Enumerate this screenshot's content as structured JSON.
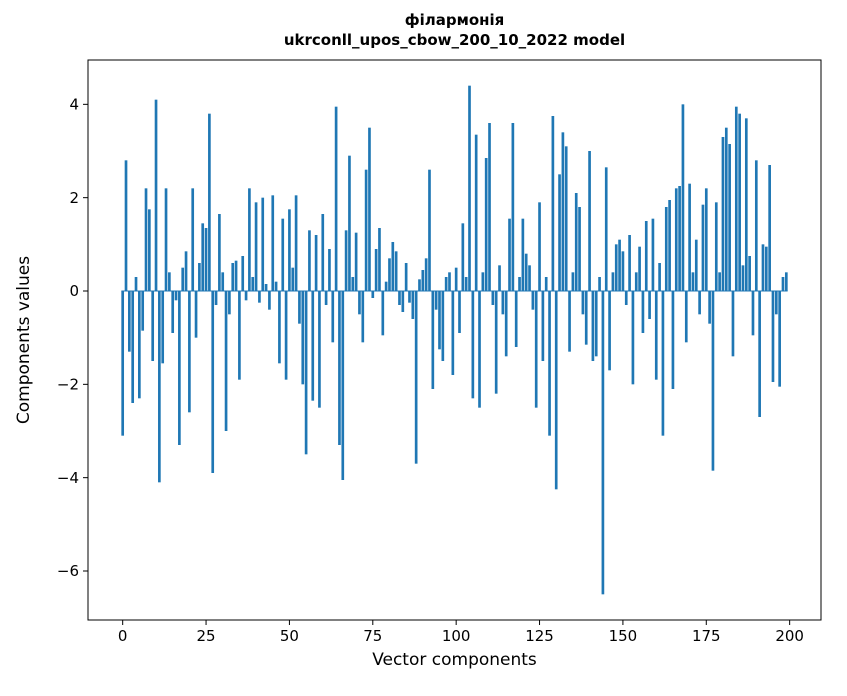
{
  "chart_data": {
    "type": "bar",
    "title_line1": "філармонія",
    "title_line2": "ukrconll_upos_cbow_200_10_2022 model",
    "xlabel": "Vector components",
    "ylabel": "Components values",
    "bar_color": "#1f77b4",
    "xlim": [
      -10.4,
      209.4
    ],
    "ylim": [
      -7.05,
      4.95
    ],
    "grid": false,
    "legend": "none",
    "xtick_values": [
      0,
      25,
      50,
      75,
      100,
      125,
      150,
      175,
      200
    ],
    "xtick_labels": [
      "0",
      "25",
      "50",
      "75",
      "100",
      "125",
      "150",
      "175",
      "200"
    ],
    "ytick_values": [
      -6,
      -4,
      -2,
      0,
      2,
      4
    ],
    "ytick_labels": [
      "−6",
      "−4",
      "−2",
      "0",
      "2",
      "4"
    ],
    "values": [
      -3.1,
      2.8,
      -1.3,
      -2.4,
      0.3,
      -2.3,
      -0.85,
      2.2,
      1.75,
      -1.5,
      4.1,
      -4.1,
      -1.55,
      2.2,
      0.4,
      -0.9,
      -0.2,
      -3.3,
      0.5,
      0.85,
      -2.6,
      2.2,
      -1.0,
      0.6,
      1.45,
      1.35,
      3.8,
      -3.9,
      -0.3,
      1.65,
      0.4,
      -3.0,
      -0.5,
      0.6,
      0.65,
      -1.9,
      0.75,
      -0.2,
      2.2,
      0.3,
      1.9,
      -0.25,
      2.0,
      0.15,
      -0.4,
      2.05,
      0.2,
      -1.55,
      1.55,
      -1.9,
      1.75,
      0.5,
      2.05,
      -0.7,
      -2.0,
      -3.5,
      1.3,
      -2.35,
      1.2,
      -2.5,
      1.65,
      -0.3,
      0.9,
      -1.1,
      3.95,
      -3.3,
      -4.05,
      1.3,
      2.9,
      0.3,
      1.25,
      -0.5,
      -1.1,
      2.6,
      3.5,
      -0.15,
      0.9,
      1.35,
      -0.95,
      0.2,
      0.7,
      1.05,
      0.85,
      -0.3,
      -0.45,
      0.6,
      -0.25,
      -0.6,
      -3.7,
      0.25,
      0.45,
      0.7,
      2.6,
      -2.1,
      -0.4,
      -1.25,
      -1.5,
      0.3,
      0.4,
      -1.8,
      0.5,
      -0.9,
      1.45,
      0.3,
      4.4,
      -2.3,
      3.35,
      -2.5,
      0.4,
      2.85,
      3.6,
      -0.3,
      -2.2,
      0.55,
      -0.5,
      -1.4,
      1.55,
      3.6,
      -1.2,
      0.3,
      1.55,
      0.8,
      0.55,
      -0.4,
      -2.5,
      1.9,
      -1.5,
      0.3,
      -3.1,
      3.75,
      -4.25,
      2.5,
      3.4,
      3.1,
      -1.3,
      0.4,
      2.1,
      1.8,
      -0.5,
      -1.15,
      3.0,
      -1.5,
      -1.4,
      0.3,
      -6.5,
      2.65,
      -1.7,
      0.4,
      1.0,
      1.1,
      0.85,
      -0.3,
      1.2,
      -2.0,
      0.4,
      0.95,
      -0.9,
      1.5,
      -0.6,
      1.55,
      -1.9,
      0.6,
      -3.1,
      1.8,
      1.95,
      -2.1,
      2.2,
      2.25,
      4.0,
      -1.1,
      2.3,
      0.4,
      1.1,
      -0.5,
      1.85,
      2.2,
      -0.7,
      -3.85,
      1.9,
      0.4,
      3.3,
      3.5,
      3.15,
      -1.4,
      3.95,
      3.8,
      0.55,
      3.7,
      0.75,
      -0.95,
      2.8,
      -2.7,
      1.0,
      0.95,
      2.7,
      -1.95,
      -0.5,
      -2.05,
      0.3,
      0.4
    ]
  }
}
